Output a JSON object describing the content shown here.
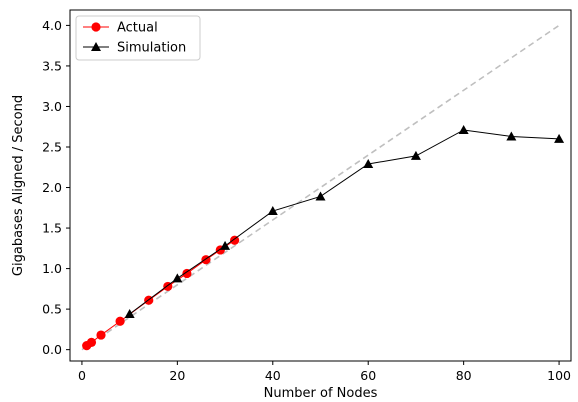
{
  "chart_data": {
    "type": "line",
    "xlabel": "Number of Nodes",
    "ylabel": "Gigabases Aligned / Second",
    "xlim": [
      -2.5,
      102.5
    ],
    "ylim": [
      -0.14,
      4.19
    ],
    "x_ticks": [
      0,
      20,
      40,
      60,
      80,
      100
    ],
    "y_ticks": [
      0.0,
      0.5,
      1.0,
      1.5,
      2.0,
      2.5,
      3.0,
      3.5,
      4.0
    ],
    "x_tick_labels": [
      "0",
      "20",
      "40",
      "60",
      "80",
      "100"
    ],
    "y_tick_labels": [
      "0.0",
      "0.5",
      "1.0",
      "1.5",
      "2.0",
      "2.5",
      "3.0",
      "3.5",
      "4.0"
    ],
    "legend_position": "top-left",
    "grid": false,
    "reference_line": {
      "x": [
        0,
        100
      ],
      "y": [
        0,
        4.0
      ],
      "color": "#bfbfbf",
      "style": "dashed"
    },
    "series": [
      {
        "name": "Actual",
        "marker": "circle",
        "color": "#ff0000",
        "x": [
          1,
          2,
          4,
          8,
          14,
          18,
          22,
          26,
          29,
          32
        ],
        "y": [
          0.05,
          0.09,
          0.18,
          0.35,
          0.61,
          0.78,
          0.94,
          1.11,
          1.23,
          1.35
        ]
      },
      {
        "name": "Simulation",
        "marker": "triangle",
        "color": "#000000",
        "x": [
          10,
          20,
          30,
          40,
          50,
          60,
          70,
          80,
          90,
          100
        ],
        "y": [
          0.44,
          0.88,
          1.28,
          1.71,
          1.89,
          2.29,
          2.39,
          2.71,
          2.63,
          2.6
        ]
      }
    ]
  }
}
